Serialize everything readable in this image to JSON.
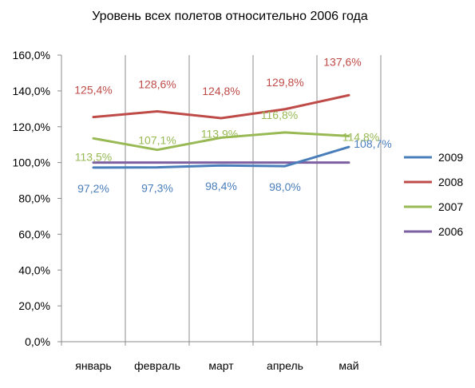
{
  "chart_data": {
    "type": "line",
    "title": "Уровень всех полетов относительно  2006 года",
    "categories": [
      "январь",
      "февраль",
      "март",
      "апрель",
      "май"
    ],
    "ylim": [
      0,
      160
    ],
    "y_ticks": [
      "0,0%",
      "20,0%",
      "40,0%",
      "60,0%",
      "80,0%",
      "100,0%",
      "120,0%",
      "140,0%",
      "160,0%"
    ],
    "grid": "vertical",
    "legend_position": "right",
    "series": [
      {
        "name": "2009",
        "color": "#4a7ebb",
        "values": [
          97.2,
          97.3,
          98.4,
          98.0,
          108.7
        ],
        "labels": [
          "97,2%",
          "97,3%",
          "98,4%",
          "98,0%",
          "108,7%"
        ]
      },
      {
        "name": "2008",
        "color": "#be4b48",
        "values": [
          125.4,
          128.6,
          124.8,
          129.8,
          137.6
        ],
        "labels": [
          "125,4%",
          "128,6%",
          "124,8%",
          "129,8%",
          "137,6%"
        ]
      },
      {
        "name": "2007",
        "color": "#98b954",
        "values": [
          113.5,
          107.1,
          113.9,
          116.8,
          114.8
        ],
        "labels": [
          "113,5%",
          "107,1%",
          "113,9%",
          "116,8%",
          "114,8%"
        ]
      },
      {
        "name": "2006",
        "color": "#7d60a0",
        "values": [
          100,
          100,
          100,
          100,
          100
        ],
        "labels": []
      }
    ]
  }
}
